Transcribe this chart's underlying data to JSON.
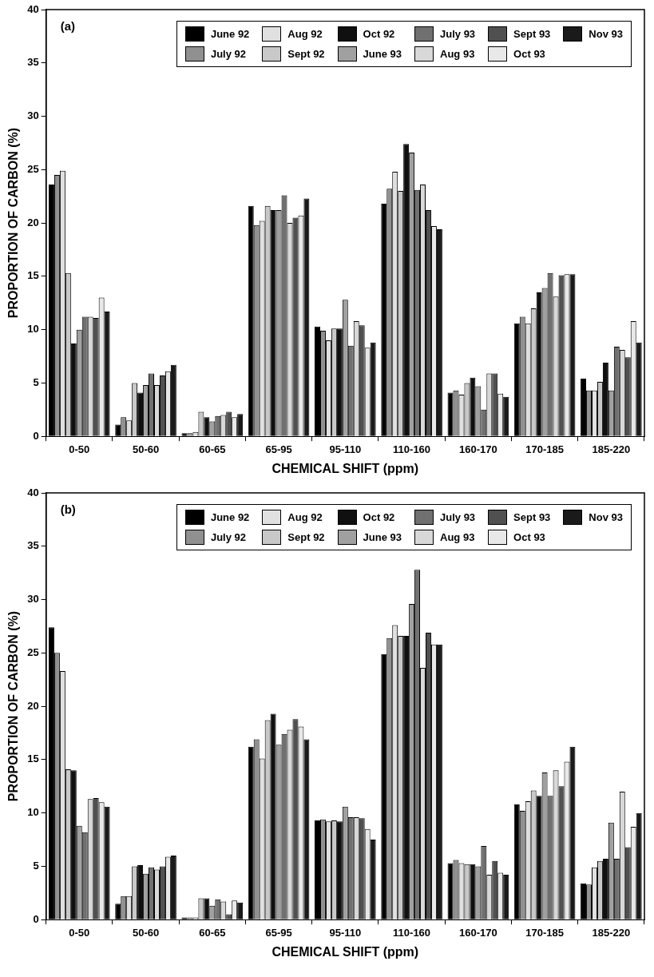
{
  "chart_data": [
    {
      "type": "bar",
      "title": "(a)",
      "xlabel": "CHEMICAL SHIFT (ppm)",
      "ylabel": "PROPORTION OF CARBON (%)",
      "categories": [
        "0-50",
        "50-60",
        "60-65",
        "65-95",
        "95-110",
        "110-160",
        "160-170",
        "170-185",
        "185-220"
      ],
      "ylim": [
        0,
        40
      ],
      "yticks": [
        0,
        5,
        10,
        15,
        20,
        25,
        30,
        35,
        40
      ],
      "grid": false,
      "legend": "top right",
      "series": [
        {
          "name": "June 92",
          "color": "#000000",
          "values": [
            23.6,
            1.1,
            0.3,
            21.6,
            10.3,
            21.8,
            4.1,
            10.6,
            5.4
          ]
        },
        {
          "name": "July 92",
          "color": "#909090",
          "values": [
            24.5,
            1.8,
            0.3,
            19.8,
            9.9,
            23.2,
            4.3,
            11.2,
            4.3
          ]
        },
        {
          "name": "Aug 92",
          "color": "#e0e0e0",
          "values": [
            24.9,
            1.5,
            0.4,
            20.2,
            9.0,
            24.8,
            3.9,
            10.6,
            4.3
          ]
        },
        {
          "name": "Sept 92",
          "color": "#c8c8c8",
          "values": [
            15.3,
            5.0,
            2.3,
            21.6,
            10.1,
            23.0,
            5.0,
            12.0,
            5.1
          ]
        },
        {
          "name": "Oct 92",
          "color": "#101010",
          "values": [
            8.7,
            4.1,
            1.8,
            21.2,
            10.1,
            27.4,
            5.5,
            13.5,
            6.9
          ]
        },
        {
          "name": "June 93",
          "color": "#a0a0a0",
          "values": [
            10.0,
            4.8,
            1.4,
            21.2,
            12.8,
            26.6,
            4.7,
            13.9,
            4.3
          ]
        },
        {
          "name": "July 93",
          "color": "#707070",
          "values": [
            11.2,
            5.9,
            1.9,
            22.6,
            8.5,
            23.1,
            2.5,
            15.3,
            8.4
          ]
        },
        {
          "name": "Aug 93",
          "color": "#d8d8d8",
          "values": [
            11.2,
            4.8,
            2.0,
            20.0,
            10.8,
            23.6,
            5.9,
            13.1,
            8.1
          ]
        },
        {
          "name": "Sept 93",
          "color": "#505050",
          "values": [
            11.1,
            5.7,
            2.3,
            20.5,
            10.4,
            21.2,
            5.9,
            15.1,
            7.4
          ]
        },
        {
          "name": "Oct 93",
          "color": "#e8e8e8",
          "values": [
            13.0,
            6.1,
            1.8,
            20.7,
            8.3,
            19.7,
            4.0,
            15.2,
            10.8
          ]
        },
        {
          "name": "Nov 93",
          "color": "#1a1a1a",
          "values": [
            11.7,
            6.7,
            2.1,
            22.3,
            8.8,
            19.4,
            3.7,
            15.2,
            8.8
          ]
        }
      ]
    },
    {
      "type": "bar",
      "title": "(b)",
      "xlabel": "CHEMICAL SHIFT (ppm)",
      "ylabel": "PROPORTION OF CARBON (%)",
      "categories": [
        "0-50",
        "50-60",
        "60-65",
        "65-95",
        "95-110",
        "110-160",
        "160-170",
        "170-185",
        "185-220"
      ],
      "ylim": [
        0,
        40
      ],
      "yticks": [
        0,
        5,
        10,
        15,
        20,
        25,
        30,
        35,
        40
      ],
      "grid": false,
      "legend": "top right",
      "series": [
        {
          "name": "June 92",
          "color": "#000000",
          "values": [
            27.4,
            1.5,
            0.2,
            16.2,
            9.3,
            24.9,
            5.3,
            10.8,
            3.4
          ]
        },
        {
          "name": "July 92",
          "color": "#909090",
          "values": [
            25.0,
            2.2,
            0.2,
            16.9,
            9.4,
            26.4,
            5.6,
            10.2,
            3.3
          ]
        },
        {
          "name": "Aug 92",
          "color": "#e0e0e0",
          "values": [
            23.3,
            2.2,
            0.2,
            15.1,
            9.2,
            27.6,
            5.3,
            11.1,
            4.9
          ]
        },
        {
          "name": "Sept 92",
          "color": "#c8c8c8",
          "values": [
            14.1,
            5.0,
            2.0,
            18.7,
            9.3,
            26.6,
            5.2,
            12.1,
            5.5
          ]
        },
        {
          "name": "Oct 92",
          "color": "#101010",
          "values": [
            14.0,
            5.1,
            2.0,
            19.3,
            9.2,
            26.6,
            5.2,
            11.6,
            5.7
          ]
        },
        {
          "name": "June 93",
          "color": "#a0a0a0",
          "values": [
            8.8,
            4.3,
            1.3,
            16.4,
            10.6,
            29.6,
            5.0,
            13.8,
            9.1
          ]
        },
        {
          "name": "July 93",
          "color": "#707070",
          "values": [
            8.2,
            4.9,
            1.9,
            17.4,
            9.6,
            32.8,
            6.9,
            11.6,
            5.7
          ]
        },
        {
          "name": "Aug 93",
          "color": "#d8d8d8",
          "values": [
            11.3,
            4.7,
            1.7,
            17.8,
            9.6,
            23.6,
            4.2,
            14.0,
            12.0
          ]
        },
        {
          "name": "Sept 93",
          "color": "#505050",
          "values": [
            11.4,
            5.0,
            0.5,
            18.8,
            9.5,
            26.9,
            5.5,
            12.5,
            6.8
          ]
        },
        {
          "name": "Oct 93",
          "color": "#e8e8e8",
          "values": [
            11.0,
            5.9,
            1.8,
            18.1,
            8.5,
            25.8,
            4.4,
            14.8,
            8.7
          ]
        },
        {
          "name": "Nov 93",
          "color": "#1a1a1a",
          "values": [
            10.6,
            6.0,
            1.6,
            16.9,
            7.5,
            25.8,
            4.2,
            16.2,
            10.0
          ]
        }
      ]
    }
  ]
}
